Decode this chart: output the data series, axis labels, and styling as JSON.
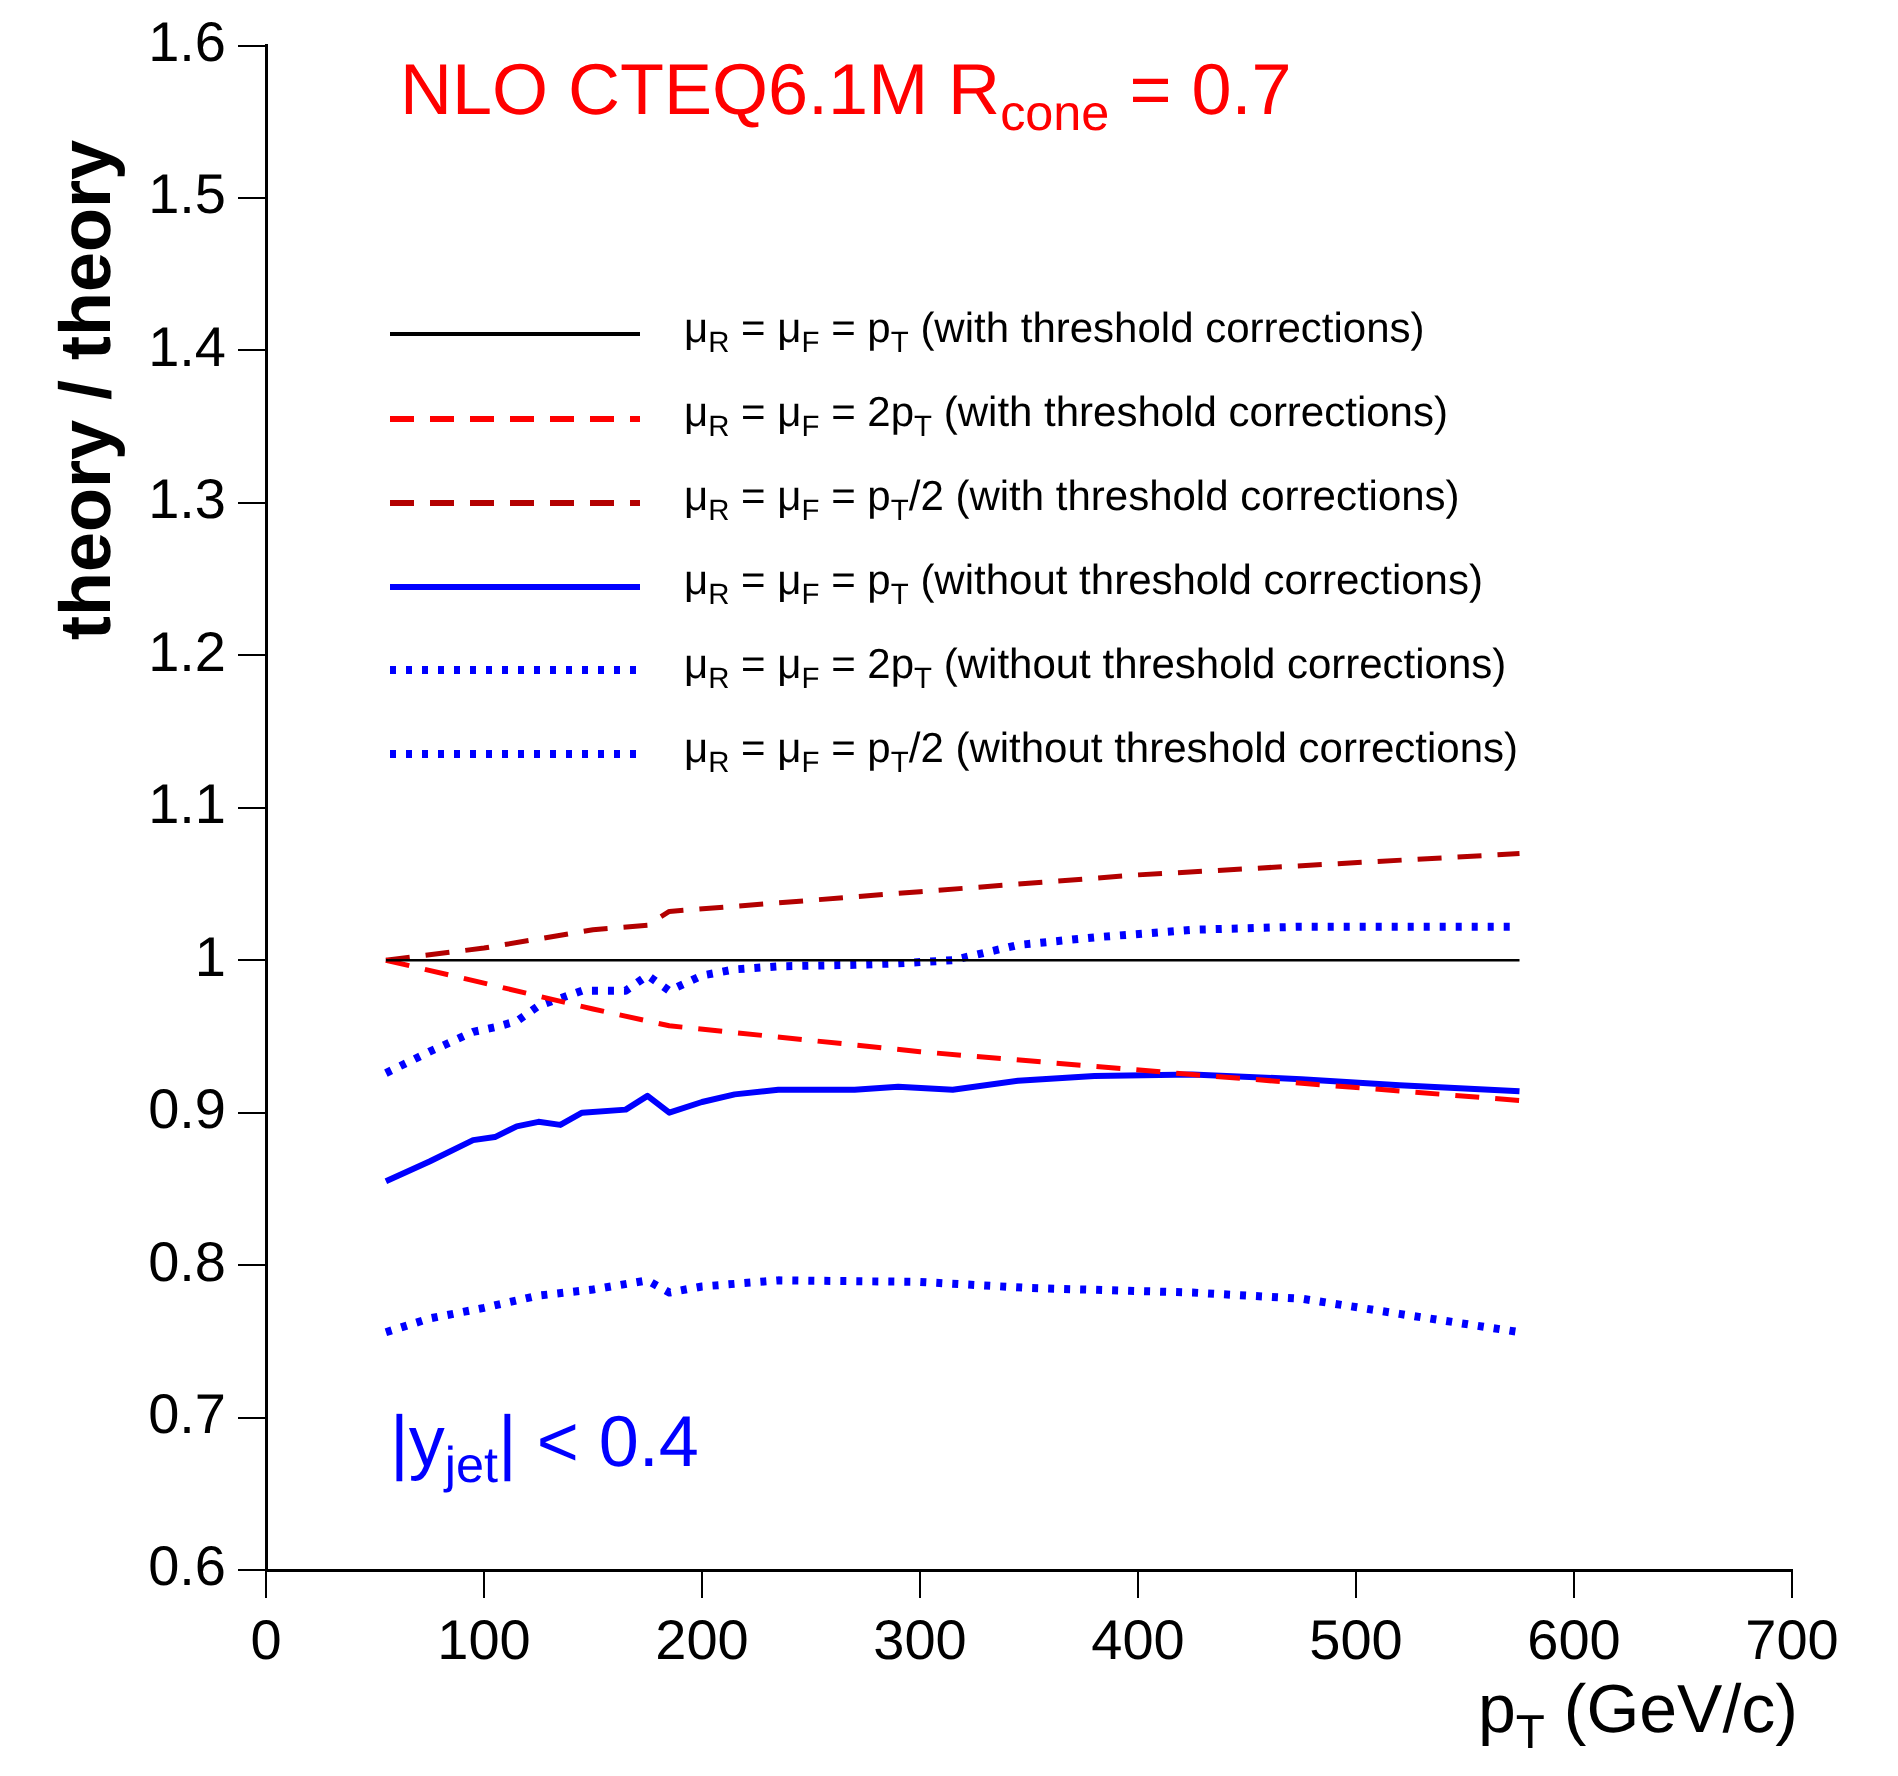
{
  "chart_data": {
    "type": "line",
    "title": "NLO   CTEQ6.1M   R$_{cone}$ = 0.7",
    "xlabel": "p$_{T}$ (GeV/c)",
    "ylabel": "theory / theory",
    "annotations": [
      "|y$_{jet}$| < 0.4"
    ],
    "xlim": [
      0,
      700
    ],
    "xticks": [
      0,
      100,
      200,
      300,
      400,
      500,
      600,
      700
    ],
    "ylim": [
      0.6,
      1.6
    ],
    "yticks": [
      0.6,
      0.7,
      0.8,
      0.9,
      1,
      1.1,
      1.2,
      1.3,
      1.4,
      1.5,
      1.6
    ],
    "grid": false,
    "legend": "top",
    "marker": "none",
    "series": [
      {
        "name": "μ$_{R}$ = μ$_{F}$ = p$_{T}$ (with threshold corrections)",
        "color": "#000000",
        "line_style": "solid",
        "x": [
          55,
          575
        ],
        "values": [
          1,
          1
        ]
      },
      {
        "name": "μ$_{R}$ = μ$_{F}$ = 2p$_{T}$ (with threshold corrections)",
        "color": "#ff0000",
        "line_style": "dashed",
        "x": [
          55,
          100,
          150,
          185,
          300,
          425,
          575
        ],
        "values": [
          1,
          0.985,
          0.968,
          0.957,
          0.94,
          0.925,
          0.908
        ]
      },
      {
        "name": "μ$_{R}$ = μ$_{F}$ = p$_{T}$/2 (with threshold corrections)",
        "color": "#b30000",
        "line_style": "dashed",
        "x": [
          55,
          100,
          150,
          175,
          185,
          300,
          400,
          575
        ],
        "values": [
          1,
          1.008,
          1.02,
          1.023,
          1.032,
          1.045,
          1.056,
          1.07
        ]
      },
      {
        "name": "μ$_{R}$ = μ$_{F}$ = p$_{T}$ (without threshold corrections)",
        "color": "#0000ff",
        "line_style": "solid",
        "x": [
          55,
          75,
          95,
          105,
          115,
          125,
          135,
          145,
          165,
          175,
          185,
          200,
          215,
          235,
          270,
          290,
          315,
          345,
          380,
          425,
          475,
          520,
          575
        ],
        "values": [
          0.855,
          0.868,
          0.882,
          0.884,
          0.891,
          0.894,
          0.892,
          0.9,
          0.902,
          0.911,
          0.9,
          0.907,
          0.912,
          0.915,
          0.915,
          0.917,
          0.915,
          0.921,
          0.924,
          0.925,
          0.922,
          0.918,
          0.914
        ]
      },
      {
        "name": "μ$_{R}$ = μ$_{F}$ = 2p$_{T}$ (without threshold corrections)",
        "color": "#0000ff",
        "line_style": "dotted",
        "x": [
          55,
          75,
          95,
          105,
          115,
          125,
          135,
          145,
          165,
          175,
          185,
          200,
          215,
          235,
          270,
          290,
          315,
          345,
          380,
          425,
          475,
          575
        ],
        "values": [
          0.926,
          0.94,
          0.953,
          0.956,
          0.96,
          0.97,
          0.975,
          0.98,
          0.98,
          0.99,
          0.98,
          0.99,
          0.994,
          0.996,
          0.997,
          0.998,
          1,
          1.01,
          1.015,
          1.02,
          1.022,
          1.022
        ]
      },
      {
        "name": "μ$_{R}$ = μ$_{F}$ = p$_{T}$/2 (without threshold corrections)",
        "color": "#0000ff",
        "line_style": "dotted",
        "x": [
          55,
          75,
          100,
          125,
          150,
          175,
          185,
          200,
          235,
          300,
          350,
          425,
          475,
          520,
          575
        ],
        "values": [
          0.756,
          0.765,
          0.772,
          0.78,
          0.784,
          0.79,
          0.782,
          0.786,
          0.79,
          0.789,
          0.785,
          0.782,
          0.778,
          0.768,
          0.756
        ]
      }
    ]
  }
}
